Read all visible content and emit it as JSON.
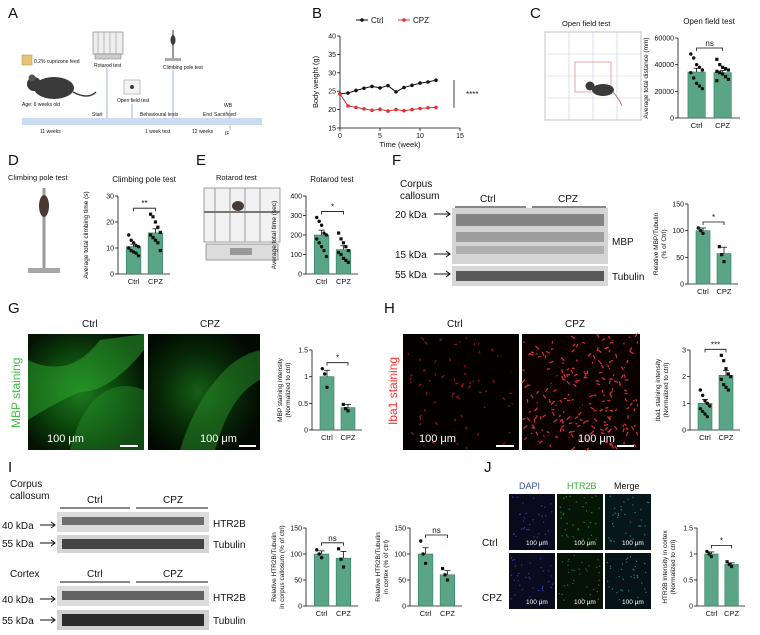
{
  "panels": {
    "A": {
      "letter": "A",
      "diet": "0.2% cuprizone feed",
      "age": "Age: 6 weeks old",
      "rotarod": "Rotarod test",
      "climbing": "Climbing pole test",
      "openfield": "Open field test",
      "start": "Start",
      "behavioural": "Behavioural tests",
      "end": "End",
      "sacrificed": "Sacrificed",
      "wb": "WB",
      "if": "IF",
      "w11": "11 weeks",
      "w1": "1 week test",
      "w12": "12 weeks"
    },
    "B": {
      "letter": "B"
    },
    "C": {
      "letter": "C",
      "title_left": "Open field test"
    },
    "D": {
      "letter": "D",
      "title_left": "Climbing pole test"
    },
    "E": {
      "letter": "E",
      "title_left": "Rotarod test"
    },
    "F": {
      "letter": "F",
      "region1": "Corpus",
      "region2": "callosum",
      "ctrl": "Ctrl",
      "cpz": "CPZ",
      "kda20": "20 kDa",
      "kda15": "15 kDa",
      "kda55": "55 kDa",
      "mbp": "MBP",
      "tubulin": "Tubulin"
    },
    "G": {
      "letter": "G",
      "ctrl": "Ctrl",
      "cpz": "CPZ",
      "stain": "MBP staining",
      "scale1": "100 μm",
      "scale2": "100 μm"
    },
    "H": {
      "letter": "H",
      "ctrl": "Ctrl",
      "cpz": "CPZ",
      "stain": "Iba1 staining",
      "scale1": "100 μm",
      "scale2": "100 μm"
    },
    "I": {
      "letter": "I",
      "region1": "Corpus",
      "region2": "callosum",
      "cortex": "Cortex",
      "ctrl1": "Ctrl",
      "cpz1": "CPZ",
      "ctrl2": "Ctrl",
      "cpz2": "CPZ",
      "kda40a": "40 kDa",
      "kda55a": "55 kDa",
      "kda40b": "40 kDa",
      "kda55b": "55 kDa",
      "htr2b_a": "HTR2B",
      "tub_a": "Tubulin",
      "htr2b_b": "HTR2B",
      "tub_b": "Tubulin"
    },
    "J": {
      "letter": "J",
      "dapi": "DAPI",
      "htr2b": "HTR2B",
      "merge": "Merge",
      "ctrl": "Ctrl",
      "cpz": "CPZ",
      "scale": "100 μm"
    }
  },
  "colors": {
    "green": "#5aa586",
    "green_dark": "#2e7f5e",
    "red": "#d93434",
    "gfp": "#3fbf3f",
    "iba": "#ff3030"
  },
  "chart_data": [
    {
      "id": "B",
      "type": "line",
      "xlabel": "Time (week)",
      "ylabel": "Body weight (g)",
      "xlim": [
        0,
        15
      ],
      "ylim": [
        15,
        40
      ],
      "xticks": [
        0,
        5,
        10,
        15
      ],
      "yticks": [
        15,
        20,
        25,
        30,
        35,
        40
      ],
      "legend": "top",
      "sig": "****",
      "series": [
        {
          "name": "Ctrl",
          "x": [
            0,
            1,
            2,
            3,
            4,
            5,
            6,
            7,
            8,
            9,
            10,
            11,
            12
          ],
          "y": [
            24.3,
            24.5,
            25.2,
            25.8,
            26.3,
            25.9,
            26.5,
            24.8,
            26.0,
            26.6,
            27.2,
            27.5,
            28.0
          ]
        },
        {
          "name": "CPZ",
          "x": [
            0,
            1,
            2,
            3,
            4,
            5,
            6,
            7,
            8,
            9,
            10,
            11,
            12
          ],
          "y": [
            24.2,
            21.0,
            20.6,
            20.2,
            19.8,
            20.1,
            19.6,
            20.0,
            19.7,
            20.0,
            20.3,
            20.5,
            20.6
          ]
        }
      ]
    },
    {
      "id": "C",
      "type": "bar",
      "title": "Open field test",
      "ylabel": "Average total distance (mm)",
      "categories": [
        "Ctrl",
        "CPZ"
      ],
      "values": [
        34500,
        34000
      ],
      "errors": [
        2800,
        1600
      ],
      "ylim": [
        0,
        60000
      ],
      "yticks": [
        0,
        20000,
        40000,
        60000
      ],
      "sig": "ns",
      "points": [
        [
          48000,
          45000,
          40000,
          38000,
          36000,
          34000,
          30000,
          26000,
          24000,
          22000
        ],
        [
          44000,
          40000,
          38000,
          37000,
          36000,
          35000,
          34000,
          33000,
          31000,
          29000,
          28000
        ]
      ]
    },
    {
      "id": "D",
      "type": "bar",
      "title": "Climbing pole test",
      "ylabel": "Average total climbing time (s)",
      "categories": [
        "Ctrl",
        "CPZ"
      ],
      "values": [
        10.5,
        15.8
      ],
      "errors": [
        1.0,
        1.6
      ],
      "ylim": [
        0,
        30
      ],
      "yticks": [
        0,
        10,
        20,
        30
      ],
      "sig": "**",
      "points": [
        [
          15,
          13,
          12,
          11,
          10.5,
          10,
          9,
          8.5,
          8,
          7
        ],
        [
          23,
          22,
          20,
          18,
          16,
          15,
          14,
          13,
          12,
          9
        ]
      ]
    },
    {
      "id": "E",
      "type": "bar",
      "title": "Rotarod test",
      "ylabel": "Average total time (sec)",
      "categories": [
        "Ctrl",
        "CPZ"
      ],
      "values": [
        200,
        125
      ],
      "errors": [
        25,
        20
      ],
      "ylim": [
        0,
        400
      ],
      "yticks": [
        0,
        100,
        200,
        300,
        400
      ],
      "sig": "*",
      "points": [
        [
          290,
          270,
          250,
          210,
          200,
          180,
          160,
          140,
          120,
          90
        ],
        [
          210,
          180,
          160,
          140,
          120,
          110,
          100,
          80,
          70,
          60
        ]
      ]
    },
    {
      "id": "F",
      "type": "bar",
      "ylabel": "Relative MBP/Tubulin (% of Ctrl)",
      "categories": [
        "Ctrl",
        "CPZ"
      ],
      "values": [
        100,
        57
      ],
      "errors": [
        5,
        12
      ],
      "ylim": [
        0,
        150
      ],
      "yticks": [
        0,
        50,
        100,
        150
      ],
      "sig": "*",
      "points": [
        [
          105,
          100,
          95
        ],
        [
          70,
          55,
          42
        ]
      ]
    },
    {
      "id": "G",
      "type": "bar",
      "ylabel": "MBP staining intensity (Normalized to ctrl)",
      "categories": [
        "Ctrl",
        "CPZ"
      ],
      "values": [
        1.0,
        0.42
      ],
      "errors": [
        0.12,
        0.06
      ],
      "ylim": [
        0,
        1.5
      ],
      "yticks": [
        0.0,
        0.5,
        1.0,
        1.5
      ],
      "sig": "*",
      "points": [
        [
          1.15,
          1.05,
          0.8
        ],
        [
          0.48,
          0.4,
          0.36
        ]
      ]
    },
    {
      "id": "H",
      "type": "bar",
      "ylabel": "Iba1 staining intensity (Normalized to ctrl)",
      "categories": [
        "Ctrl",
        "CPZ"
      ],
      "values": [
        1.0,
        2.05
      ],
      "errors": [
        0.15,
        0.18
      ],
      "ylim": [
        0,
        3
      ],
      "yticks": [
        0,
        1,
        2,
        3
      ],
      "sig": "***",
      "points": [
        [
          1.5,
          1.3,
          1.1,
          1.0,
          0.9,
          0.8,
          0.7,
          0.6,
          0.5
        ],
        [
          2.8,
          2.6,
          2.3,
          2.1,
          2.0,
          1.9,
          1.7,
          1.6,
          1.5
        ]
      ]
    },
    {
      "id": "I1",
      "type": "bar",
      "ylabel": "Relative HTR2B/Tubulin in corpus callosum (% of ctrl)",
      "categories": [
        "Ctrl",
        "CPZ"
      ],
      "values": [
        100,
        92
      ],
      "errors": [
        6,
        13
      ],
      "ylim": [
        0,
        150
      ],
      "yticks": [
        0,
        50,
        100,
        150
      ],
      "sig": "ns",
      "points": [
        [
          108,
          100,
          93
        ],
        [
          110,
          90,
          75
        ]
      ]
    },
    {
      "id": "I2",
      "type": "bar",
      "ylabel": "Relative HTR2B/Tubulin in cortex (% of ctrl)",
      "categories": [
        "Ctrl",
        "CPZ"
      ],
      "values": [
        100,
        60
      ],
      "errors": [
        12,
        8
      ],
      "ylim": [
        0,
        150
      ],
      "yticks": [
        0,
        50,
        100,
        150
      ],
      "sig": "ns",
      "points": [
        [
          125,
          100,
          82
        ],
        [
          72,
          60,
          50
        ]
      ]
    },
    {
      "id": "J",
      "type": "bar",
      "ylabel": "HTR2B intensity in cortex (Normalized to ctrl)",
      "categories": [
        "Ctrl",
        "CPZ"
      ],
      "values": [
        1.0,
        0.8
      ],
      "errors": [
        0.04,
        0.03
      ],
      "ylim": [
        0,
        1.5
      ],
      "yticks": [
        0.0,
        0.5,
        1.0,
        1.5
      ],
      "sig": "*",
      "points": [
        [
          1.05,
          1.0,
          0.95
        ],
        [
          0.85,
          0.8,
          0.76
        ]
      ]
    }
  ]
}
